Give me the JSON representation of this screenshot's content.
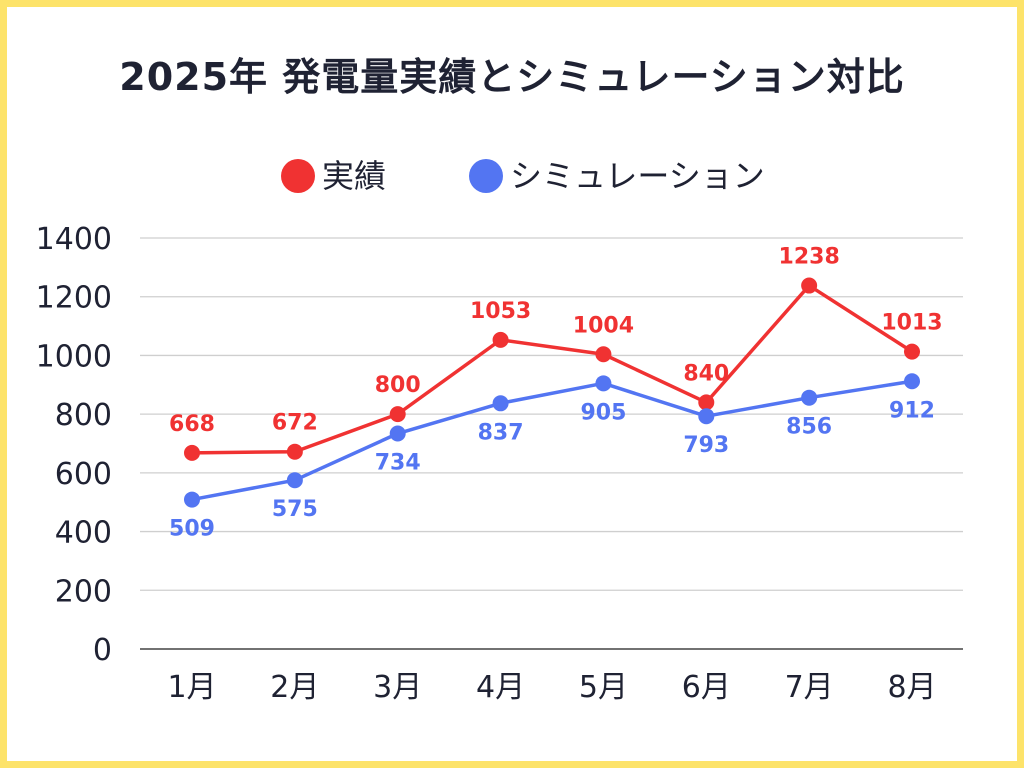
{
  "title": "2025年 発電量実績とシミュレーション対比",
  "colors": {
    "actual": "#f03232",
    "simulation": "#5375f2",
    "grid": "#cfcfcf",
    "border": "#fde36a",
    "text": "#1f2233"
  },
  "chart_data": {
    "type": "line",
    "title": "2025年 発電量実績とシミュレーション対比",
    "xlabel": "",
    "ylabel": "",
    "categories": [
      "1月",
      "2月",
      "3月",
      "4月",
      "5月",
      "6月",
      "7月",
      "8月"
    ],
    "ylim": [
      0,
      1400
    ],
    "yticks": [
      0,
      200,
      400,
      600,
      800,
      1000,
      1200,
      1400
    ],
    "grid": true,
    "legend_position": "top",
    "data_labels": true,
    "series": [
      {
        "name": "実績",
        "color": "#f03232",
        "label_position": "above",
        "values": [
          668,
          672,
          800,
          1053,
          1004,
          840,
          1238,
          1013
        ]
      },
      {
        "name": "シミュレーション",
        "color": "#5375f2",
        "label_position": "below",
        "values": [
          509,
          575,
          734,
          837,
          905,
          793,
          856,
          912
        ]
      }
    ]
  }
}
